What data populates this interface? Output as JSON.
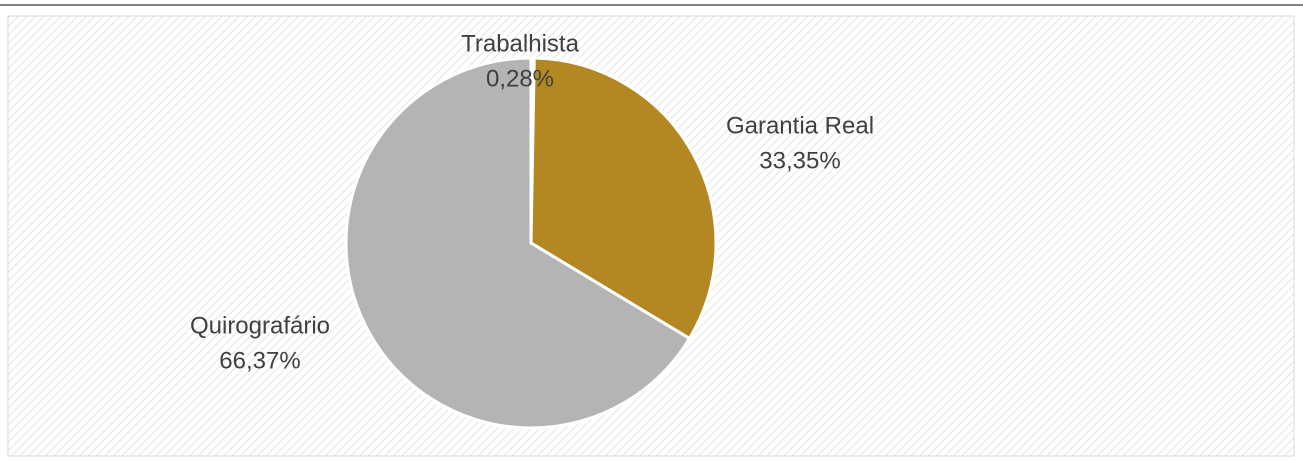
{
  "chart_data": {
    "type": "pie",
    "categories": [
      "Trabalhista",
      "Garantia Real",
      "Quirografário"
    ],
    "values": [
      0.28,
      33.35,
      66.37
    ],
    "value_labels": [
      "0,28%",
      "33,35%",
      "66,37%"
    ],
    "colors": [
      "#f2f2f2",
      "#b38822",
      "#b4b4b4"
    ]
  }
}
